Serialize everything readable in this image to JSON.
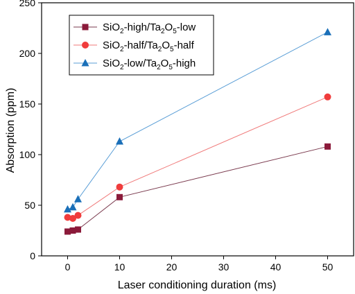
{
  "chart_data": {
    "type": "line",
    "xlabel": "Laser conditioning duration (ms)",
    "ylabel": "Absorption (ppm)",
    "xlim": [
      -5,
      55
    ],
    "ylim": [
      0,
      250
    ],
    "xticks": [
      0,
      10,
      20,
      30,
      40,
      50
    ],
    "yticks": [
      0,
      50,
      100,
      150,
      200,
      250
    ],
    "grid": false,
    "legend_position": "top-left",
    "series": [
      {
        "name": "SiO2-high/Ta2O5-low",
        "legend": [
          {
            "t": "SiO"
          },
          {
            "t": "2",
            "sub": true
          },
          {
            "t": "-high/Ta"
          },
          {
            "t": "2",
            "sub": true
          },
          {
            "t": "O"
          },
          {
            "t": "5",
            "sub": true
          },
          {
            "t": "-low"
          }
        ],
        "marker": "square",
        "marker_color": "#8b1a3a",
        "line_color": "#7a3a4e",
        "x": [
          0,
          1,
          2,
          10,
          50
        ],
        "y": [
          24,
          25,
          26,
          58,
          108
        ]
      },
      {
        "name": "SiO2-half/Ta2O5-half",
        "legend": [
          {
            "t": "SiO"
          },
          {
            "t": "2",
            "sub": true
          },
          {
            "t": "-half/Ta"
          },
          {
            "t": "2",
            "sub": true
          },
          {
            "t": "O"
          },
          {
            "t": "5",
            "sub": true
          },
          {
            "t": "-half"
          }
        ],
        "marker": "circle",
        "marker_color": "#f03c3c",
        "line_color": "#f07a7a",
        "x": [
          0,
          1,
          2,
          10,
          50
        ],
        "y": [
          38,
          37,
          40,
          68,
          157
        ]
      },
      {
        "name": "SiO2-low/Ta2O5-high",
        "legend": [
          {
            "t": "SiO"
          },
          {
            "t": "2",
            "sub": true
          },
          {
            "t": "-low/Ta"
          },
          {
            "t": "2",
            "sub": true
          },
          {
            "t": "O"
          },
          {
            "t": "5",
            "sub": true
          },
          {
            "t": "-high"
          }
        ],
        "marker": "triangle",
        "marker_color": "#1a6fb8",
        "line_color": "#5a9ed6",
        "x": [
          0,
          1,
          2,
          10,
          50
        ],
        "y": [
          46,
          48,
          56,
          113,
          221
        ]
      }
    ]
  }
}
